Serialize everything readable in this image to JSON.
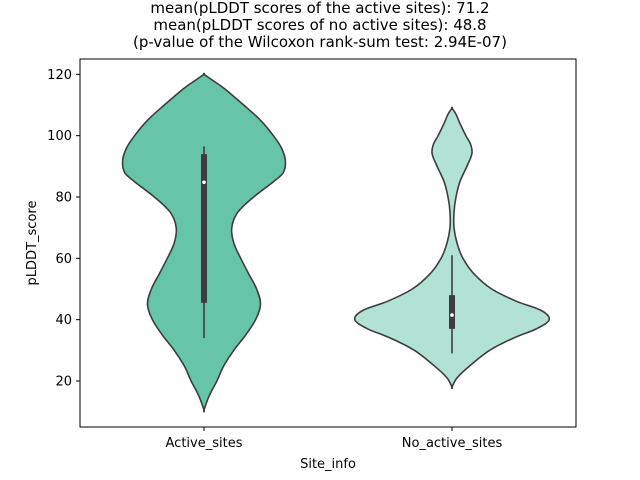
{
  "chart_data": {
    "type": "violin",
    "title_lines": [
      "mean(pLDDT scores of the active sites): 71.2",
      "mean(pLDDT scores of no active sites): 48.8",
      "(p-value of the Wilcoxon rank-sum test: 2.94E-07)"
    ],
    "xlabel": "Site_info",
    "ylabel": "pLDDT_score",
    "ylim": [
      5,
      125
    ],
    "yticks": [
      20,
      40,
      60,
      80,
      100,
      120
    ],
    "categories": [
      "Active_sites",
      "No_active_sites"
    ],
    "grid": false,
    "colors": {
      "active_fill": "#66c5a7",
      "no_active_fill": "#b2e2d3",
      "outline": "#3d3d3d",
      "box": "#3d3d3d",
      "median": "#ffffff"
    },
    "violins": [
      {
        "category": "Active_sites",
        "y_min": 10.5,
        "y_max": 120,
        "whisker_low": 34,
        "q1": 45.5,
        "median": 84.8,
        "q3": 94,
        "whisker_high": 96.5,
        "density_profile": [
          [
            10.5,
            0.0
          ],
          [
            15,
            0.05
          ],
          [
            20,
            0.13
          ],
          [
            25,
            0.2
          ],
          [
            30,
            0.3
          ],
          [
            35,
            0.42
          ],
          [
            40,
            0.52
          ],
          [
            45,
            0.57
          ],
          [
            50,
            0.53
          ],
          [
            55,
            0.45
          ],
          [
            60,
            0.37
          ],
          [
            65,
            0.3
          ],
          [
            70,
            0.28
          ],
          [
            75,
            0.34
          ],
          [
            80,
            0.5
          ],
          [
            85,
            0.7
          ],
          [
            88,
            0.8
          ],
          [
            92,
            0.82
          ],
          [
            96,
            0.78
          ],
          [
            100,
            0.7
          ],
          [
            105,
            0.57
          ],
          [
            110,
            0.4
          ],
          [
            115,
            0.22
          ],
          [
            118,
            0.09
          ],
          [
            120,
            0.0
          ]
        ]
      },
      {
        "category": "No_active_sites",
        "y_min": 18,
        "y_max": 109,
        "whisker_low": 29,
        "q1": 37,
        "median": 41.5,
        "q3": 48,
        "whisker_high": 61,
        "density_profile": [
          [
            18,
            0.0
          ],
          [
            21,
            0.05
          ],
          [
            25,
            0.18
          ],
          [
            30,
            0.38
          ],
          [
            34,
            0.62
          ],
          [
            37,
            0.85
          ],
          [
            40,
            0.98
          ],
          [
            43,
            0.9
          ],
          [
            46,
            0.65
          ],
          [
            50,
            0.4
          ],
          [
            55,
            0.22
          ],
          [
            60,
            0.11
          ],
          [
            65,
            0.05
          ],
          [
            70,
            0.02
          ],
          [
            75,
            0.02
          ],
          [
            80,
            0.04
          ],
          [
            85,
            0.08
          ],
          [
            90,
            0.15
          ],
          [
            94,
            0.2
          ],
          [
            97,
            0.19
          ],
          [
            100,
            0.14
          ],
          [
            104,
            0.08
          ],
          [
            107,
            0.04
          ],
          [
            109,
            0.0
          ]
        ]
      }
    ]
  }
}
